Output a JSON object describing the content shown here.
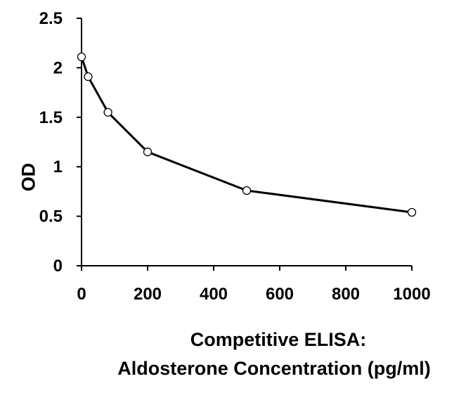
{
  "chart_data": {
    "type": "line",
    "title": "",
    "xlabel_lines": [
      "Competitive ELISA:",
      "Aldosterone Concentration (pg/ml)"
    ],
    "ylabel": "OD",
    "xlim": [
      0,
      1000
    ],
    "ylim": [
      0,
      2.5
    ],
    "x_ticks": [
      0,
      200,
      400,
      600,
      800,
      1000
    ],
    "x_tick_labels": [
      "0",
      "200",
      "400",
      "600",
      "800",
      "1000"
    ],
    "y_ticks": [
      0,
      0.5,
      1,
      1.5,
      2,
      2.5
    ],
    "y_tick_labels": [
      "0",
      "0.5",
      "1",
      "1.5",
      "2",
      "2.5"
    ],
    "grid": false,
    "legend": "none",
    "series": [
      {
        "x": [
          0,
          20,
          80,
          200,
          500,
          1000
        ],
        "y": [
          2.11,
          1.91,
          1.55,
          1.15,
          0.76,
          0.54
        ],
        "line_color": "#000000",
        "marker": "open-circle",
        "marker_fill": "#ffffff",
        "marker_stroke": "#000000"
      }
    ]
  }
}
